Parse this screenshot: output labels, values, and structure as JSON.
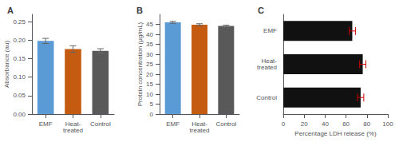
{
  "chart_data": [
    {
      "type": "bar",
      "title": "A",
      "categories": [
        "EMF",
        "Heat-\ntreated",
        "Control"
      ],
      "values": [
        0.198,
        0.176,
        0.171
      ],
      "errors": [
        0.007,
        0.009,
        0.006
      ],
      "colors": [
        "#5B9BD5",
        "#C55A11",
        "#595959"
      ],
      "error_color": "#666666",
      "ylabel": "Absorbance (au)",
      "ylim": [
        0,
        0.27
      ],
      "yticks": [
        {
          "value": 0,
          "label": "0.00"
        },
        {
          "value": 0.05,
          "label": "0.05"
        },
        {
          "value": 0.1,
          "label": "0.10"
        },
        {
          "value": 0.15,
          "label": "0.15"
        },
        {
          "value": 0.2,
          "label": "0.20"
        },
        {
          "value": 0.25,
          "label": "0.25"
        }
      ],
      "grid": false
    },
    {
      "type": "bar",
      "title": "B",
      "categories": [
        "EMF",
        "Heat-\ntreated",
        "Control"
      ],
      "values": [
        46.0,
        44.8,
        44.2
      ],
      "errors": [
        0.5,
        0.5,
        0.4
      ],
      "colors": [
        "#5B9BD5",
        "#C55A11",
        "#595959"
      ],
      "error_color": "#666666",
      "ylabel": "Protein concentration (μg/mL)",
      "ylim": [
        0,
        50
      ],
      "yticks": [
        0,
        5,
        10,
        15,
        20,
        25,
        30,
        35,
        40,
        45
      ],
      "grid": false
    },
    {
      "type": "bar",
      "title": "C",
      "orientation": "horizontal",
      "categories": [
        "Control",
        "Heat-\ntreated",
        "EMF"
      ],
      "values": [
        74.0,
        76.0,
        66.0
      ],
      "errors": [
        3.0,
        3.0,
        3.0
      ],
      "color": "#111111",
      "error_color": "#CC0000",
      "xlabel": "Percentage LDH release (%)",
      "xlim": [
        0,
        100
      ],
      "xticks": [
        0,
        20,
        40,
        60,
        80,
        100
      ],
      "grid": false
    }
  ]
}
